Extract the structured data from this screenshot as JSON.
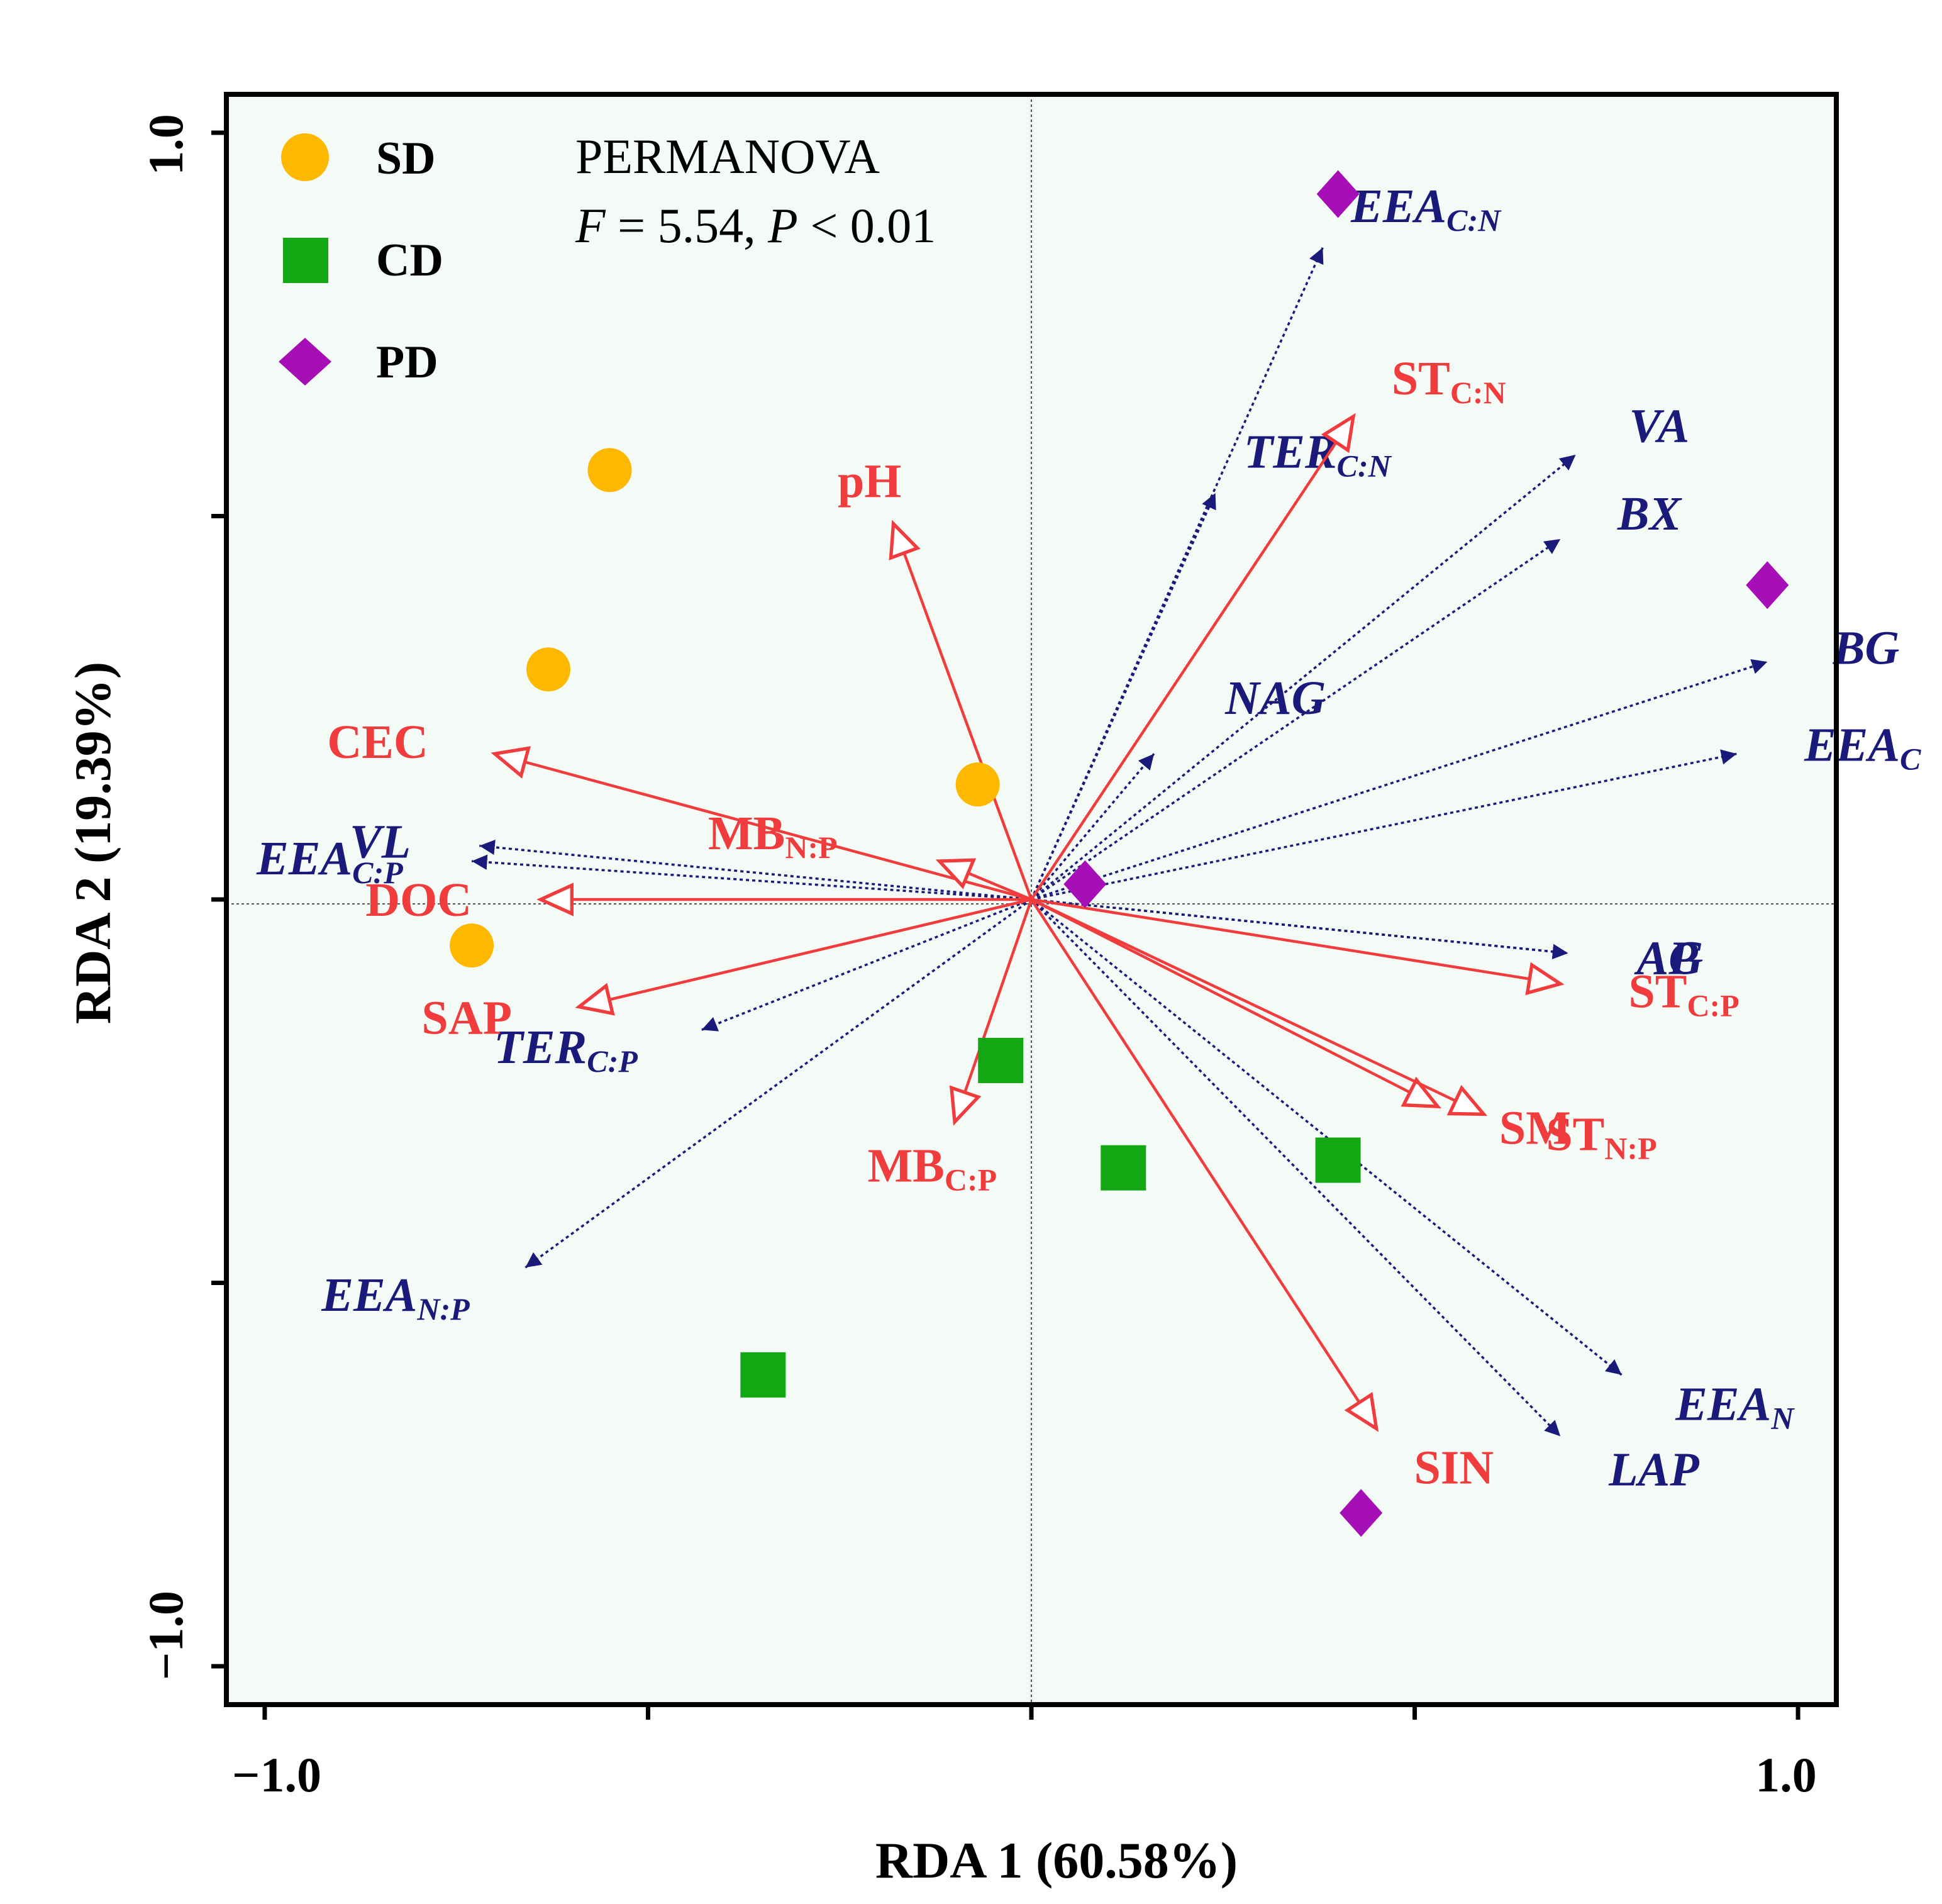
{
  "chart_data": {
    "type": "scatter",
    "subtype": "rda-biplot",
    "xlabel": "RDA 1 (60.58%)",
    "ylabel": "RDA 2 (19.39%)",
    "xlim": [
      -1.05,
      1.05
    ],
    "ylim": [
      -1.05,
      1.05
    ],
    "x_tick_labels": [
      {
        "value": -1.0,
        "text": "−1.0"
      },
      {
        "value": 1.0,
        "text": "1.0"
      }
    ],
    "y_tick_labels": [
      {
        "value": 1.0,
        "text": "1.0"
      },
      {
        "value": -1.0,
        "text": "−1.0"
      }
    ],
    "x_minor_ticks": [
      -1.0,
      -0.5,
      0.0,
      0.5,
      1.0
    ],
    "y_minor_ticks": [
      1.0,
      0.5,
      0.0,
      -0.5,
      -1.0
    ],
    "annotation": {
      "line1": "PERMANOVA",
      "f_symbol": "F",
      "f_text": " = 5.54, ",
      "p_symbol": "P",
      "p_text": " < 0.01"
    },
    "colors": {
      "SD": "#ffb800",
      "CD": "#13a813",
      "PD": "#a60fb5",
      "env": "#f03c3c",
      "enzyme": "#1a1a7a",
      "background": "#f4fbf7"
    },
    "legend": {
      "position": "top-left",
      "entries": [
        {
          "label": "SD",
          "marker": "circle"
        },
        {
          "label": "CD",
          "marker": "square"
        },
        {
          "label": "PD",
          "marker": "diamond"
        }
      ]
    },
    "series": [
      {
        "name": "SD",
        "marker": "circle",
        "points": [
          [
            -0.55,
            0.56
          ],
          [
            -0.63,
            0.3
          ],
          [
            -0.07,
            0.15
          ],
          [
            -0.73,
            -0.06
          ]
        ]
      },
      {
        "name": "CD",
        "marker": "square",
        "points": [
          [
            -0.04,
            -0.21
          ],
          [
            0.12,
            -0.35
          ],
          [
            0.4,
            -0.34
          ],
          [
            -0.35,
            -0.62
          ]
        ]
      },
      {
        "name": "PD",
        "marker": "diamond",
        "points": [
          [
            0.4,
            0.92
          ],
          [
            0.96,
            0.41
          ],
          [
            0.07,
            0.02
          ],
          [
            0.43,
            -0.8
          ]
        ]
      }
    ],
    "env_vectors": [
      {
        "label": "pH",
        "sub": "",
        "x": -0.18,
        "y": 0.49
      },
      {
        "label": "CEC",
        "sub": "",
        "x": -0.7,
        "y": 0.19
      },
      {
        "label": "MB",
        "sub": "N:P",
        "x": -0.12,
        "y": 0.05
      },
      {
        "label": "DOC",
        "sub": "",
        "x": -0.64,
        "y": 0.0
      },
      {
        "label": "SAP",
        "sub": "",
        "x": -0.59,
        "y": -0.14
      },
      {
        "label": "MB",
        "sub": "C:P",
        "x": -0.1,
        "y": -0.29
      },
      {
        "label": "ST",
        "sub": "C:N",
        "x": 0.42,
        "y": 0.63
      },
      {
        "label": "ST",
        "sub": "C:P",
        "x": 0.69,
        "y": -0.11
      },
      {
        "label": "SM",
        "sub": "",
        "x": 0.53,
        "y": -0.27
      },
      {
        "label": "ST",
        "sub": "N:P",
        "x": 0.59,
        "y": -0.28
      },
      {
        "label": "SIN",
        "sub": "",
        "x": 0.45,
        "y": -0.69
      }
    ],
    "enzyme_vectors": [
      {
        "label": "EEA",
        "sub": "C:N",
        "x": 0.38,
        "y": 0.85
      },
      {
        "label": "TER",
        "sub": "C:N",
        "x": 0.24,
        "y": 0.53
      },
      {
        "label": "VA",
        "sub": "",
        "x": 0.71,
        "y": 0.58
      },
      {
        "label": "BX",
        "sub": "",
        "x": 0.69,
        "y": 0.47
      },
      {
        "label": "NAG",
        "sub": "",
        "x": 0.16,
        "y": 0.19
      },
      {
        "label": "BG",
        "sub": "",
        "x": 0.96,
        "y": 0.31
      },
      {
        "label": "EEA",
        "sub": "C",
        "x": 0.92,
        "y": 0.19
      },
      {
        "label": "AP",
        "sub": "",
        "x": 0.7,
        "y": -0.07
      },
      {
        "label": "AG",
        "sub": "",
        "x": 0.7,
        "y": -0.07
      },
      {
        "label": "VL",
        "sub": "",
        "x": -0.72,
        "y": 0.07
      },
      {
        "label": "EEA",
        "sub": "C:P",
        "x": -0.73,
        "y": 0.05
      },
      {
        "label": "TER",
        "sub": "C:P",
        "x": -0.43,
        "y": -0.17
      },
      {
        "label": "EEA",
        "sub": "N:P",
        "x": -0.66,
        "y": -0.48
      },
      {
        "label": "EEA",
        "sub": "N",
        "x": 0.77,
        "y": -0.62
      },
      {
        "label": "LAP",
        "sub": "",
        "x": 0.69,
        "y": -0.7
      }
    ]
  }
}
